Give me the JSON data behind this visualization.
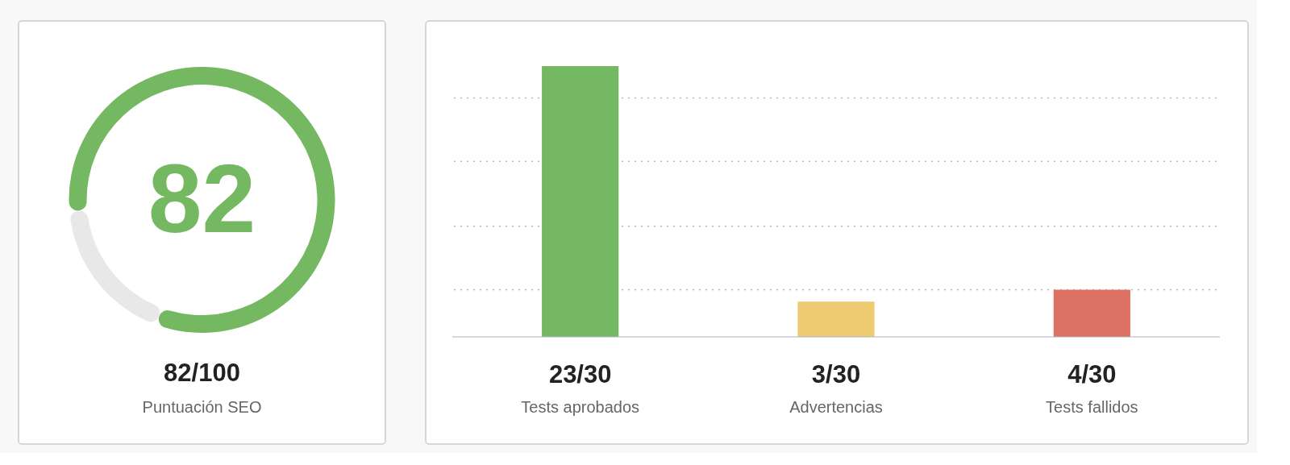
{
  "chart_data": [
    {
      "type": "donut",
      "categories": [
        null,
        null
      ],
      "values": [
        82,
        18
      ],
      "colors": [
        "#74b862",
        "#e8e8e8"
      ],
      "value_labels": [
        "82",
        null
      ],
      "annotations": [
        "82/100",
        "Puntuación SEO"
      ]
    },
    {
      "type": "bar",
      "categories": [
        "Tests aprobados",
        "Advertencias",
        "Tests fallidos"
      ],
      "values": [
        23,
        3,
        4
      ],
      "colors": [
        "#74b862",
        "#eecb72",
        "#dd7264"
      ],
      "value_labels": [
        "23/30",
        "3/30",
        "4/30"
      ],
      "ylim": [
        0,
        23
      ],
      "yticks": [
        {
          "value": 4,
          "label": null
        },
        {
          "value": 9.4,
          "label": null
        },
        {
          "value": 14.9,
          "label": null
        },
        {
          "value": 20.3,
          "label": null
        }
      ],
      "grid": "y"
    }
  ]
}
